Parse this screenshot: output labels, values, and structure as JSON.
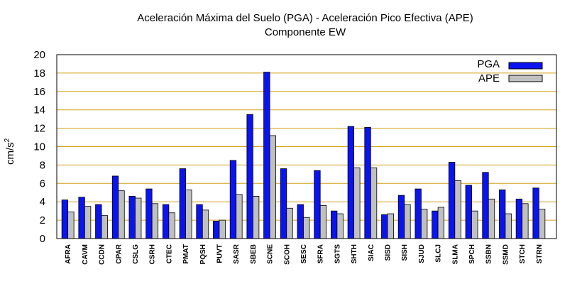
{
  "chart_data": {
    "type": "bar",
    "title": "Aceleración Máxima del Suelo (PGA) -  Aceleración Pico Efectiva (APE)",
    "subtitle": "Componente EW",
    "xlabel": "",
    "ylabel": "cm/s",
    "ylabel_superscript": "2",
    "ylim": [
      0,
      20
    ],
    "yticks": [
      0,
      2,
      4,
      6,
      8,
      10,
      12,
      14,
      16,
      18,
      20
    ],
    "grid": "horizontal",
    "grid_color": "#d4a017",
    "legend_position": "top-right",
    "categories": [
      "AFRA",
      "CAVM",
      "CCDN",
      "CPAR",
      "CSLG",
      "CSRH",
      "CTEC",
      "PMAT",
      "PQSH",
      "PUVT",
      "SASR",
      "SBEB",
      "SCNE",
      "SCOH",
      "SESC",
      "SFRA",
      "SGTS",
      "SHTH",
      "SIAC",
      "SISD",
      "SISH",
      "SJUD",
      "SLCJ",
      "SLMA",
      "SPCH",
      "SSBN",
      "SSMD",
      "STCH",
      "STRN"
    ],
    "series": [
      {
        "name": "PGA",
        "color": "#0a14f0",
        "values": [
          4.2,
          4.5,
          3.7,
          6.8,
          4.6,
          5.4,
          3.7,
          7.6,
          3.7,
          1.9,
          8.5,
          13.5,
          18.1,
          7.6,
          3.7,
          7.4,
          3.0,
          12.2,
          12.1,
          2.6,
          4.7,
          5.4,
          3.0,
          8.3,
          5.8,
          7.2,
          5.3,
          4.3,
          5.5
        ]
      },
      {
        "name": "APE",
        "color": "#c0c0c0",
        "values": [
          2.9,
          3.5,
          2.5,
          5.2,
          4.4,
          3.8,
          2.8,
          5.3,
          3.1,
          2.0,
          4.8,
          4.6,
          11.2,
          3.3,
          2.3,
          3.6,
          2.7,
          7.7,
          7.7,
          2.7,
          3.7,
          3.2,
          3.4,
          6.3,
          3.0,
          4.3,
          2.7,
          3.8,
          3.2
        ]
      }
    ]
  }
}
